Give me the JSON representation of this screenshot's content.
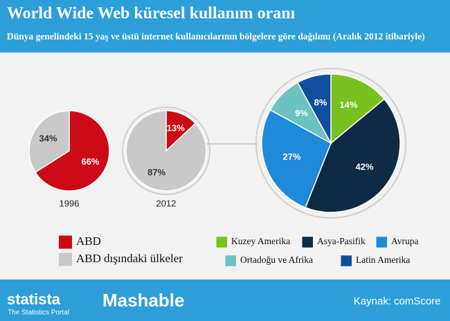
{
  "title": "World Wide Web küresel kullanım oranı",
  "subtitle": "Dünya genelindeki 15 yaş ve üstü internet kullanıcılarının bölgelere göre dağılımı (Aralık 2012 itibariyle)",
  "chart_data": [
    {
      "type": "pie",
      "label": "1996",
      "categories": [
        "ABD",
        "ABD dışındaki ülkeler"
      ],
      "values": [
        66,
        34
      ],
      "value_labels": [
        "66%",
        "34%"
      ],
      "colors": [
        "#cc0a16",
        "#c9c9c9"
      ]
    },
    {
      "type": "pie",
      "label": "2012",
      "categories": [
        "ABD",
        "ABD dışındaki ülkeler"
      ],
      "values": [
        13,
        87
      ],
      "value_labels": [
        "13%",
        "87%"
      ],
      "colors": [
        "#cc0a16",
        "#c9c9c9"
      ]
    },
    {
      "type": "pie",
      "categories": [
        "Kuzey Amerika",
        "Asya-Pasifik",
        "Avrupa",
        "Ortadoğu ve Afrika",
        "Latin Amerika"
      ],
      "values": [
        14,
        42,
        27,
        9,
        8
      ],
      "value_labels": [
        "14%",
        "42%",
        "27%",
        "9%",
        "8%"
      ],
      "colors": [
        "#78c11e",
        "#0e2a44",
        "#1f8ad9",
        "#6dc2c2",
        "#0f4e9c"
      ]
    }
  ],
  "footer": {
    "brand": "statista",
    "tagline": "The Statistics Portal",
    "partner": "Mashable",
    "source_label": "Kaynak:",
    "source": "comScore"
  }
}
